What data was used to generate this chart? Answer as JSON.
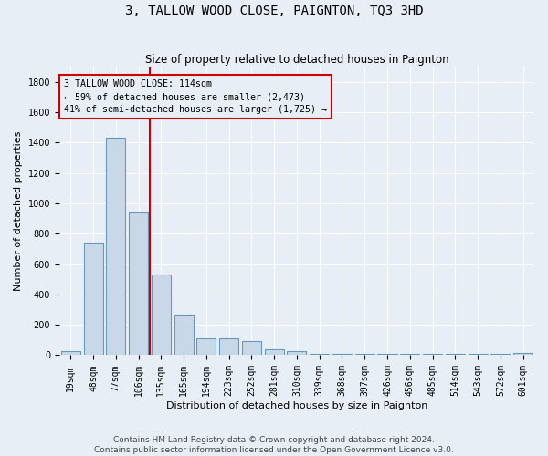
{
  "title": "3, TALLOW WOOD CLOSE, PAIGNTON, TQ3 3HD",
  "subtitle": "Size of property relative to detached houses in Paignton",
  "xlabel": "Distribution of detached houses by size in Paignton",
  "ylabel": "Number of detached properties",
  "bar_labels": [
    "19sqm",
    "48sqm",
    "77sqm",
    "106sqm",
    "135sqm",
    "165sqm",
    "194sqm",
    "223sqm",
    "252sqm",
    "281sqm",
    "310sqm",
    "339sqm",
    "368sqm",
    "397sqm",
    "426sqm",
    "456sqm",
    "485sqm",
    "514sqm",
    "543sqm",
    "572sqm",
    "601sqm"
  ],
  "bar_values": [
    25,
    740,
    1430,
    940,
    530,
    265,
    110,
    110,
    90,
    40,
    25,
    10,
    10,
    10,
    10,
    10,
    10,
    10,
    10,
    10,
    15
  ],
  "bar_color": "#c8d8e8",
  "bar_edgecolor": "#6699bb",
  "vline_x": 3.5,
  "vline_color": "#cc0000",
  "annotation_line1": "3 TALLOW WOOD CLOSE: 114sqm",
  "annotation_line2": "← 59% of detached houses are smaller (2,473)",
  "annotation_line3": "41% of semi-detached houses are larger (1,725) →",
  "annotation_box_edgecolor": "#cc0000",
  "ylim": [
    0,
    1900
  ],
  "yticks": [
    0,
    200,
    400,
    600,
    800,
    1000,
    1200,
    1400,
    1600,
    1800
  ],
  "footer": "Contains HM Land Registry data © Crown copyright and database right 2024.\nContains public sector information licensed under the Open Government Licence v3.0.",
  "background_color": "#e8eef5",
  "grid_color": "#ffffff",
  "title_fontsize": 10,
  "subtitle_fontsize": 8.5,
  "axis_label_fontsize": 8,
  "tick_fontsize": 7,
  "footer_fontsize": 6.5
}
